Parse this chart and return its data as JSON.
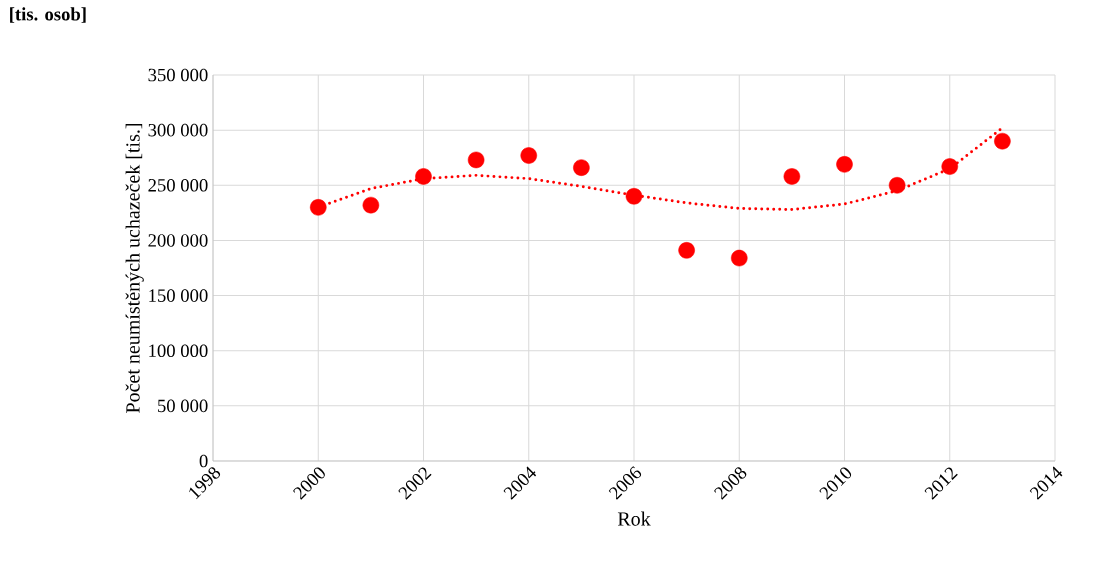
{
  "chart_data": {
    "type": "scatter",
    "xlabel": "Rok",
    "ylabel": "Počet neumístěných uchazeček [tis.]",
    "annotations": [
      "[tis. osob]"
    ],
    "x": [
      2000,
      2001,
      2002,
      2003,
      2004,
      2005,
      2006,
      2007,
      2008,
      2009,
      2010,
      2011,
      2012,
      2013
    ],
    "series": [
      {
        "color": "#ff0000",
        "values": [
          230000,
          232000,
          258000,
          273000,
          277000,
          266000,
          240000,
          191000,
          184000,
          258000,
          269000,
          250000,
          267000,
          290000
        ]
      },
      {
        "type": "line",
        "color": "#ff0000",
        "line_style": "dotted",
        "marker": "none",
        "x": [
          2000,
          2001,
          2002,
          2003,
          2004,
          2005,
          2006,
          2007,
          2008,
          2009,
          2010,
          2011,
          2012,
          2013
        ],
        "values": [
          230000,
          247000,
          256000,
          259000,
          256000,
          249000,
          241000,
          234000,
          229000,
          228000,
          233000,
          245000,
          265000,
          302000
        ]
      }
    ],
    "xlim": [
      1998,
      2014
    ],
    "xticks": [
      1998,
      2000,
      2002,
      2004,
      2006,
      2008,
      2010,
      2012,
      2014
    ],
    "ylim": [
      0,
      350000
    ],
    "yticks": [
      {
        "value": 0,
        "label": "0"
      },
      {
        "value": 50000,
        "label": "50 000"
      },
      {
        "value": 100000,
        "label": "100 000"
      },
      {
        "value": 150000,
        "label": "150 000"
      },
      {
        "value": 200000,
        "label": "200 000"
      },
      {
        "value": 250000,
        "label": "250 000"
      },
      {
        "value": 300000,
        "label": "300 000"
      },
      {
        "value": 350000,
        "label": "350 000"
      }
    ],
    "grid": true,
    "marker": "circle"
  }
}
